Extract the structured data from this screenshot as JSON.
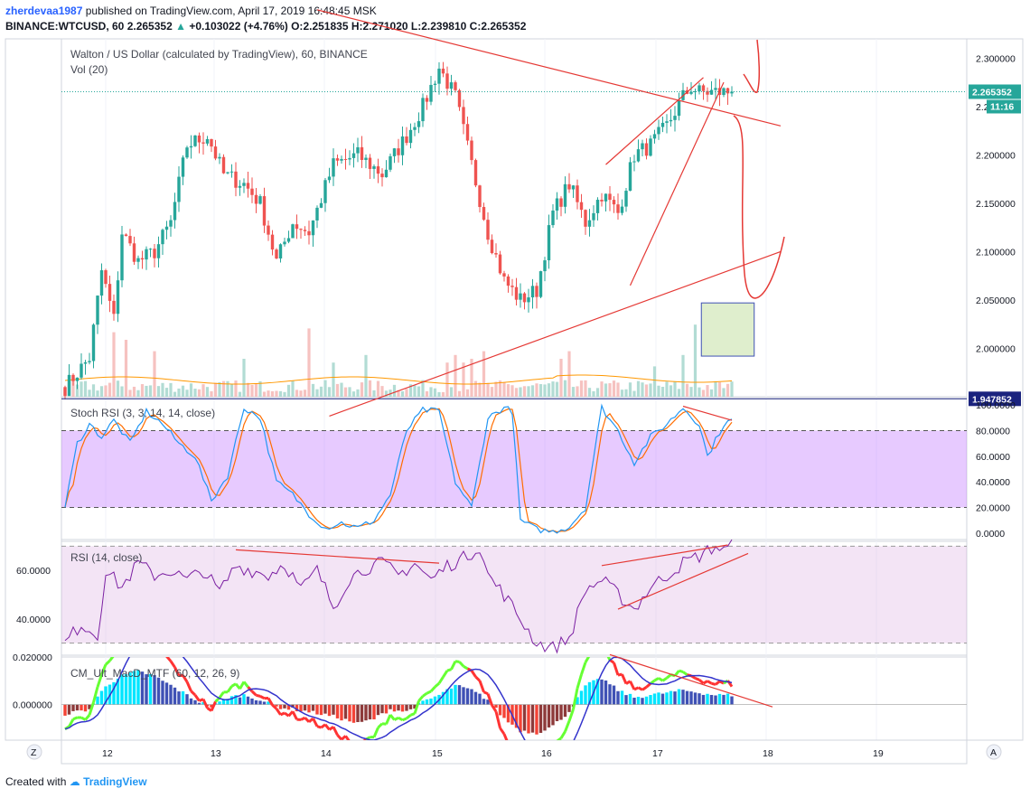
{
  "header": {
    "user": "zherdevaa1987",
    "published_text": " published on TradingView.com, April 17, 2019 16:48:45 MSK",
    "symbol": "BINANCE:WTCUSD, 60",
    "last": "2.265352",
    "change": "+0.103022 (+4.76%)",
    "o_label": "O:",
    "o": "2.251835",
    "h_label": "H:",
    "h": "2.271020",
    "l_label": "L:",
    "l": "2.239810",
    "c_label": "C:",
    "c": "2.265352"
  },
  "footer": {
    "created_with": "Created with",
    "brand": "TradingView"
  },
  "colors": {
    "up": "#26a69a",
    "down": "#ef5350",
    "trend": "#e53935",
    "stoch_k": "#2196f3",
    "stoch_d": "#ff6d00",
    "rsi": "#7b1fa2",
    "level_line": "#1a237e"
  },
  "chart_data": [
    {
      "type": "candlestick",
      "title": "Walton / US Dollar (calculated by TradingView), 60, BINANCE",
      "subtitle": "Vol (20)",
      "ylim": [
        1.95,
        2.32
      ],
      "y_ticks": [
        "2.300000",
        "2.250000",
        "2.200000",
        "2.150000",
        "2.100000",
        "2.050000",
        "2.000000"
      ],
      "last_price": 2.265352,
      "last_price_label": "2.265352",
      "countdown": "11:16",
      "level": 1.947852,
      "level_label": "1.947852",
      "x_ticks": [
        "12",
        "13",
        "14",
        "15",
        "16",
        "17",
        "18",
        "19"
      ],
      "start_price": 1.96,
      "waypoints": [
        [
          0,
          1.96
        ],
        [
          6,
          1.99
        ],
        [
          9,
          2.08
        ],
        [
          12,
          2.03
        ],
        [
          14,
          2.12
        ],
        [
          18,
          2.09
        ],
        [
          22,
          2.1
        ],
        [
          26,
          2.13
        ],
        [
          30,
          2.21
        ],
        [
          35,
          2.22
        ],
        [
          39,
          2.18
        ],
        [
          44,
          2.17
        ],
        [
          48,
          2.15
        ],
        [
          52,
          2.09
        ],
        [
          56,
          2.13
        ],
        [
          60,
          2.12
        ],
        [
          66,
          2.19
        ],
        [
          72,
          2.2
        ],
        [
          78,
          2.18
        ],
        [
          84,
          2.22
        ],
        [
          88,
          2.25
        ],
        [
          92,
          2.29
        ],
        [
          96,
          2.26
        ],
        [
          100,
          2.19
        ],
        [
          104,
          2.12
        ],
        [
          108,
          2.07
        ],
        [
          112,
          2.05
        ],
        [
          116,
          2.06
        ],
        [
          120,
          2.14
        ],
        [
          124,
          2.17
        ],
        [
          128,
          2.13
        ],
        [
          132,
          2.16
        ],
        [
          136,
          2.14
        ],
        [
          140,
          2.2
        ],
        [
          144,
          2.21
        ],
        [
          148,
          2.23
        ],
        [
          152,
          2.26
        ],
        [
          154,
          2.27
        ],
        [
          156,
          2.265
        ]
      ],
      "volume_spikes": {
        "12": 0.85,
        "15": 0.75,
        "22": 0.6,
        "44": 0.5,
        "60": 0.9,
        "66": 0.45,
        "74": 0.55,
        "94": 0.45,
        "96": 0.55,
        "98": 0.45,
        "100": 0.5,
        "103": 0.6,
        "122": 0.5,
        "124": 0.6,
        "145": 0.4,
        "152": 0.55,
        "155": 0.95
      },
      "drawings": {
        "zone": {
          "x0": 156.5,
          "x1": 169.5,
          "y0": 2.047,
          "y1": 1.992
        },
        "lines": [
          {
            "name": "upper-resistance-line",
            "p": [
              [
                62,
                2.35
              ],
              [
                176,
                2.23
              ]
            ]
          },
          {
            "name": "lower-support-line",
            "p": [
              [
                65,
                1.93
              ],
              [
                176,
                2.1
              ]
            ]
          },
          {
            "name": "wedge-upper-line",
            "p": [
              [
                133,
                2.19
              ],
              [
                157,
                2.28
              ]
            ]
          },
          {
            "name": "wedge-lower-line",
            "p": [
              [
                139,
                2.065
              ],
              [
                162,
                2.275
              ]
            ]
          }
        ]
      }
    },
    {
      "type": "line",
      "title": "Stoch RSI (3, 3, 14, 14, close)",
      "ylim": [
        0,
        100
      ],
      "y_ticks": [
        "100.0000",
        "80.0000",
        "60.0000",
        "40.0000",
        "20.0000",
        "0.0000"
      ],
      "band": [
        20,
        80
      ],
      "series": [
        {
          "name": "K",
          "waypoints": [
            [
              0,
              20
            ],
            [
              3,
              70
            ],
            [
              6,
              85
            ],
            [
              9,
              75
            ],
            [
              12,
              88
            ],
            [
              16,
              70
            ],
            [
              20,
              95
            ],
            [
              24,
              85
            ],
            [
              28,
              70
            ],
            [
              32,
              60
            ],
            [
              36,
              25
            ],
            [
              40,
              45
            ],
            [
              44,
              98
            ],
            [
              48,
              90
            ],
            [
              52,
              40
            ],
            [
              56,
              30
            ],
            [
              60,
              15
            ],
            [
              64,
              4
            ],
            [
              68,
              8
            ],
            [
              72,
              4
            ],
            [
              76,
              10
            ],
            [
              80,
              30
            ],
            [
              84,
              80
            ],
            [
              88,
              96
            ],
            [
              92,
              95
            ],
            [
              96,
              40
            ],
            [
              100,
              20
            ],
            [
              104,
              90
            ],
            [
              108,
              98
            ],
            [
              110,
              95
            ],
            [
              112,
              10
            ],
            [
              116,
              3
            ],
            [
              120,
              1
            ],
            [
              124,
              5
            ],
            [
              128,
              20
            ],
            [
              132,
              98
            ],
            [
              136,
              80
            ],
            [
              140,
              55
            ],
            [
              144,
              75
            ],
            [
              148,
              85
            ],
            [
              152,
              98
            ],
            [
              156,
              85
            ],
            [
              158,
              60
            ],
            [
              162,
              85
            ],
            [
              164,
              88
            ]
          ]
        }
      ]
    },
    {
      "type": "line",
      "title": "RSI (14, close)",
      "ylim": [
        25,
        72
      ],
      "y_ticks": [
        "60.0000",
        "40.0000"
      ],
      "band": [
        30,
        70
      ],
      "series": [
        {
          "name": "RSI",
          "waypoints": [
            [
              0,
              30
            ],
            [
              4,
              38
            ],
            [
              8,
              33
            ],
            [
              10,
              60
            ],
            [
              14,
              53
            ],
            [
              18,
              63
            ],
            [
              22,
              58
            ],
            [
              26,
              60
            ],
            [
              30,
              56
            ],
            [
              34,
              60
            ],
            [
              38,
              51
            ],
            [
              42,
              62
            ],
            [
              46,
              60
            ],
            [
              50,
              58
            ],
            [
              54,
              63
            ],
            [
              58,
              52
            ],
            [
              62,
              60
            ],
            [
              66,
              45
            ],
            [
              70,
              57
            ],
            [
              74,
              61
            ],
            [
              78,
              63
            ],
            [
              82,
              58
            ],
            [
              86,
              63
            ],
            [
              90,
              56
            ],
            [
              94,
              62
            ],
            [
              98,
              65
            ],
            [
              102,
              70
            ],
            [
              104,
              58
            ],
            [
              108,
              50
            ],
            [
              112,
              40
            ],
            [
              116,
              30
            ],
            [
              120,
              28
            ],
            [
              124,
              32
            ],
            [
              128,
              52
            ],
            [
              132,
              56
            ],
            [
              136,
              50
            ],
            [
              140,
              44
            ],
            [
              144,
              53
            ],
            [
              148,
              58
            ],
            [
              152,
              63
            ],
            [
              156,
              66
            ],
            [
              160,
              70
            ],
            [
              162,
              68
            ],
            [
              164,
              70
            ]
          ]
        }
      ]
    },
    {
      "type": "bar",
      "title": "CM_Ult_MacD_MTF (60, 12, 26, 9)",
      "ylim": [
        -0.015,
        0.02
      ],
      "y_ticks": [
        "0.020000",
        "0.000000"
      ],
      "waypoints": [
        [
          0,
          -0.004
        ],
        [
          6,
          -0.002
        ],
        [
          10,
          0.008
        ],
        [
          14,
          0.012
        ],
        [
          18,
          0.014
        ],
        [
          22,
          0.012
        ],
        [
          26,
          0.008
        ],
        [
          32,
          0.002
        ],
        [
          36,
          -0.001
        ],
        [
          40,
          0.003
        ],
        [
          44,
          0.004
        ],
        [
          48,
          0.002
        ],
        [
          52,
          -0.001
        ],
        [
          60,
          -0.003
        ],
        [
          66,
          -0.005
        ],
        [
          72,
          -0.008
        ],
        [
          76,
          -0.006
        ],
        [
          80,
          -0.002
        ],
        [
          84,
          -0.003
        ],
        [
          88,
          0.001
        ],
        [
          92,
          0.004
        ],
        [
          96,
          0.008
        ],
        [
          100,
          0.006
        ],
        [
          104,
          0.002
        ],
        [
          108,
          -0.006
        ],
        [
          112,
          -0.011
        ],
        [
          116,
          -0.012
        ],
        [
          120,
          -0.009
        ],
        [
          124,
          -0.003
        ],
        [
          128,
          0.008
        ],
        [
          132,
          0.011
        ],
        [
          136,
          0.006
        ],
        [
          140,
          0.003
        ],
        [
          144,
          0.004
        ],
        [
          148,
          0.005
        ],
        [
          152,
          0.006
        ],
        [
          156,
          0.005
        ],
        [
          160,
          0.004
        ],
        [
          164,
          0.004
        ]
      ]
    }
  ]
}
